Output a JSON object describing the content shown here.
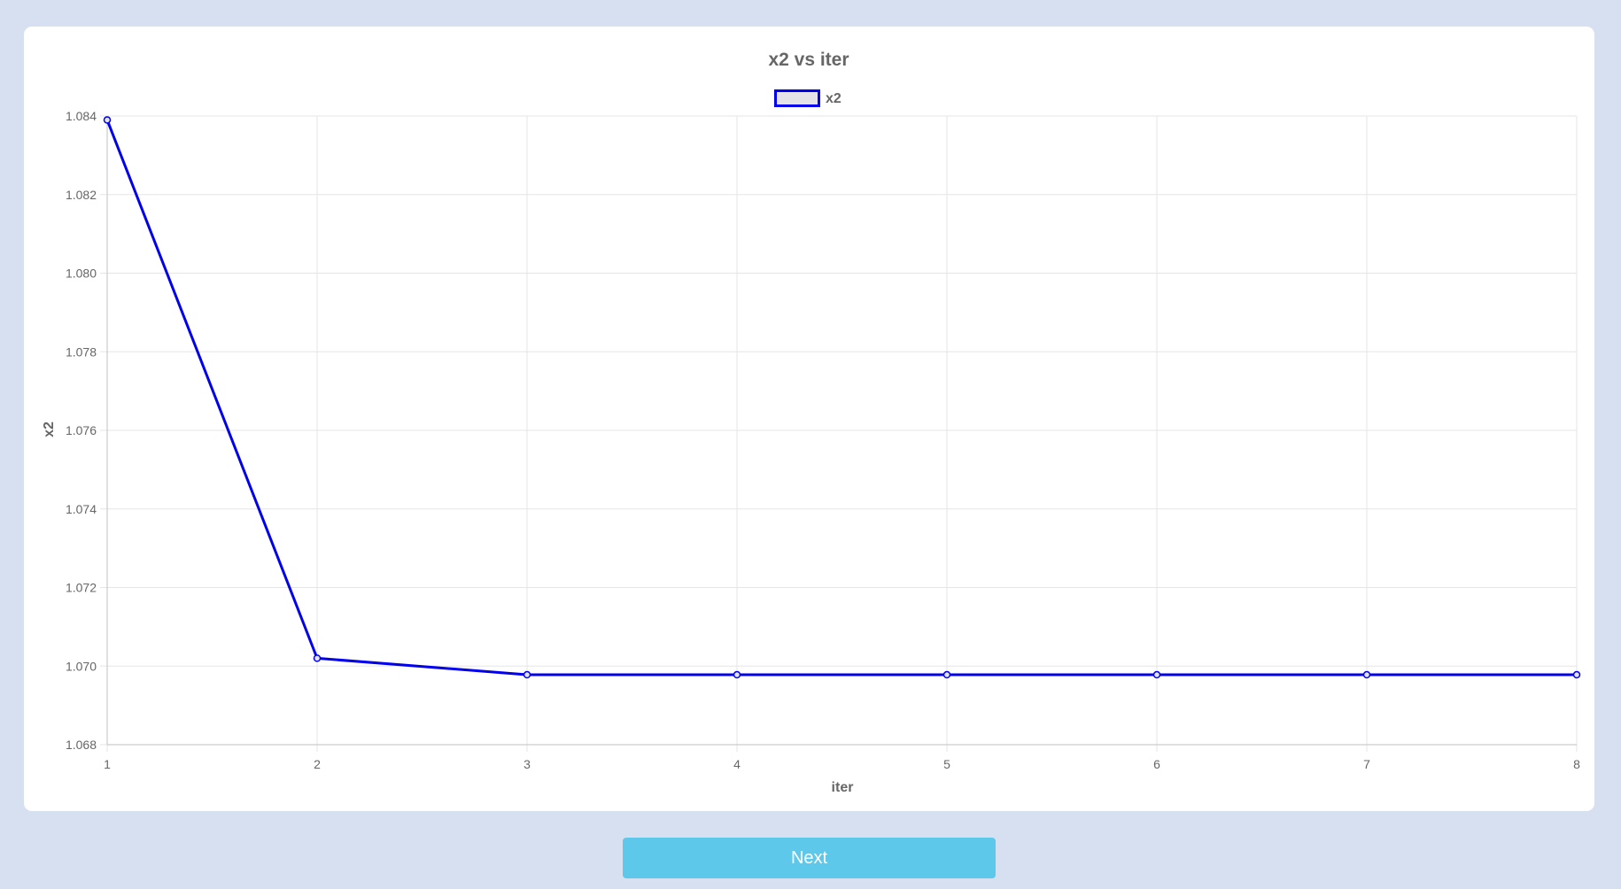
{
  "colors": {
    "page_background": "#d6e0f0",
    "card_background": "#ffffff",
    "series_line": "#0000ee",
    "legend_fill": "#e3e3e8",
    "grid": "#e5e5e5",
    "text": "#666666",
    "button_background": "#5ec8ea",
    "button_text": "#ffffff"
  },
  "chart_data": {
    "type": "line",
    "title": "x2 vs iter",
    "xlabel": "iter",
    "ylabel": "x2",
    "x": [
      1,
      2,
      3,
      4,
      5,
      6,
      7,
      8
    ],
    "series": [
      {
        "name": "x2",
        "values": [
          1.0839,
          1.0702,
          1.06978,
          1.06978,
          1.06978,
          1.06978,
          1.06978,
          1.06978
        ]
      }
    ],
    "xlim": [
      1,
      8
    ],
    "ylim": [
      1.068,
      1.084
    ],
    "x_ticks": [
      "1",
      "2",
      "3",
      "4",
      "5",
      "6",
      "7",
      "8"
    ],
    "y_ticks": [
      "1.068",
      "1.070",
      "1.072",
      "1.074",
      "1.076",
      "1.078",
      "1.080",
      "1.082",
      "1.084"
    ],
    "grid": true,
    "legend_position": "top-center"
  },
  "actions": {
    "next_label": "Next"
  }
}
